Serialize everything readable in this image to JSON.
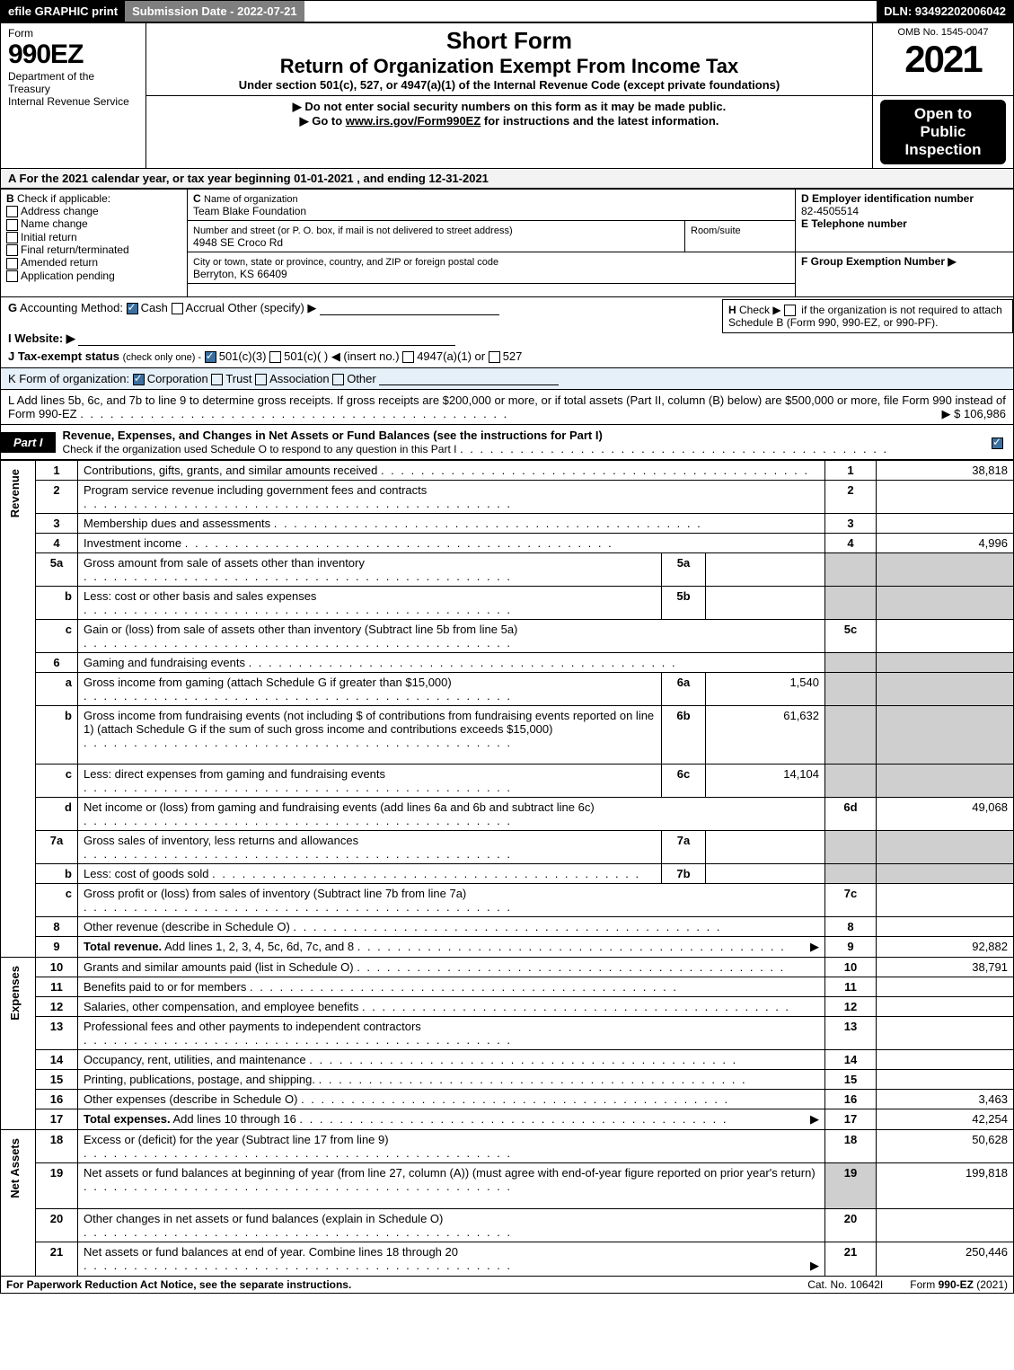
{
  "topbar": {
    "efile": "efile GRAPHIC print",
    "submission": "Submission Date - 2022-07-21",
    "dln": "DLN: 93492202006042"
  },
  "header": {
    "form_word": "Form",
    "form_code": "990EZ",
    "dept_line1": "Department of the Treasury",
    "dept_line2": "Internal Revenue Service",
    "title1": "Short Form",
    "title2": "Return of Organization Exempt From Income Tax",
    "title3": "Under section 501(c), 527, or 4947(a)(1) of the Internal Revenue Code (except private foundations)",
    "warn": "▶ Do not enter social security numbers on this form as it may be made public.",
    "goto_pre": "▶ Go to ",
    "goto_link": "www.irs.gov/Form990EZ",
    "goto_post": " for instructions and the latest information.",
    "omb": "OMB No. 1545-0047",
    "year": "2021",
    "open1": "Open to",
    "open2": "Public",
    "open3": "Inspection"
  },
  "line_a": "A  For the 2021 calendar year, or tax year beginning 01-01-2021 , and ending 12-31-2021",
  "section_b": {
    "heading": "B",
    "sub": "Check if applicable:",
    "items": [
      "Address change",
      "Name change",
      "Initial return",
      "Final return/terminated",
      "Amended return",
      "Application pending"
    ]
  },
  "section_c": {
    "label_c": "C",
    "name_label": "Name of organization",
    "name": "Team Blake Foundation",
    "street_label": "Number and street (or P. O. box, if mail is not delivered to street address)",
    "street": "4948 SE Croco Rd",
    "room_label": "Room/suite",
    "city_label": "City or town, state or province, country, and ZIP or foreign postal code",
    "city": "Berryton, KS  66409"
  },
  "section_d": {
    "label": "D Employer identification number",
    "value": "82-4505514",
    "e_label": "E Telephone number",
    "f_label": "F Group Exemption Number   ▶"
  },
  "gij": {
    "g_label": "G",
    "g_text": "Accounting Method:",
    "g_cash": "Cash",
    "g_accrual": "Accrual",
    "g_other": "Other (specify) ▶",
    "h_label": "H",
    "h_text_pre": "Check ▶ ",
    "h_text": " if the organization is not required to attach Schedule B (Form 990, 990-EZ, or 990-PF).",
    "i_label": "I Website: ▶",
    "j_label": "J Tax-exempt status",
    "j_note": "(check only one) -",
    "j_501c3": "501(c)(3)",
    "j_501c": "501(c)(  ) ◀ (insert no.)",
    "j_4947": "4947(a)(1) or",
    "j_527": "527"
  },
  "k_line": {
    "label": "K",
    "text": "Form of organization:",
    "opts": [
      "Corporation",
      "Trust",
      "Association",
      "Other"
    ]
  },
  "l_line": {
    "label": "L",
    "text": "Add lines 5b, 6c, and 7b to line 9 to determine gross receipts. If gross receipts are $200,000 or more, or if total assets (Part II, column (B) below) are $500,000 or more, file Form 990 instead of Form 990-EZ",
    "arrow_val": "▶ $ 106,986"
  },
  "part1": {
    "tag": "Part I",
    "title": "Revenue, Expenses, and Changes in Net Assets or Fund Balances (see the instructions for Part I)",
    "subtitle": "Check if the organization used Schedule O to respond to any question in this Part I"
  },
  "side_labels": {
    "revenue": "Revenue",
    "expenses": "Expenses",
    "netassets": "Net Assets"
  },
  "rows": [
    {
      "n": "1",
      "desc": "Contributions, gifts, grants, and similar amounts received",
      "ref": "1",
      "amt": "38,818"
    },
    {
      "n": "2",
      "desc": "Program service revenue including government fees and contracts",
      "ref": "2",
      "amt": ""
    },
    {
      "n": "3",
      "desc": "Membership dues and assessments",
      "ref": "3",
      "amt": ""
    },
    {
      "n": "4",
      "desc": "Investment income",
      "ref": "4",
      "amt": "4,996"
    },
    {
      "n": "5a",
      "desc": "Gross amount from sale of assets other than inventory",
      "sub_lbl": "5a",
      "sub_val": "",
      "ref": "",
      "amt": "",
      "shade": true
    },
    {
      "n": "b",
      "desc": "Less: cost or other basis and sales expenses",
      "sub_lbl": "5b",
      "sub_val": "",
      "ref": "",
      "amt": "",
      "shade": true
    },
    {
      "n": "c",
      "desc": "Gain or (loss) from sale of assets other than inventory (Subtract line 5b from line 5a)",
      "ref": "5c",
      "amt": ""
    },
    {
      "n": "6",
      "desc": "Gaming and fundraising events",
      "ref": "",
      "amt": "",
      "shade": true,
      "nosub": true
    },
    {
      "n": "a",
      "desc": "Gross income from gaming (attach Schedule G if greater than $15,000)",
      "sub_lbl": "6a",
      "sub_val": "1,540",
      "ref": "",
      "amt": "",
      "shade": true
    },
    {
      "n": "b",
      "desc": "Gross income from fundraising events (not including $                    of contributions from fundraising events reported on line 1) (attach Schedule G if the sum of such gross income and contributions exceeds $15,000)",
      "sub_lbl": "6b",
      "sub_val": "61,632",
      "ref": "",
      "amt": "",
      "shade": true,
      "tall": true
    },
    {
      "n": "c",
      "desc": "Less: direct expenses from gaming and fundraising events",
      "sub_lbl": "6c",
      "sub_val": "14,104",
      "ref": "",
      "amt": "",
      "shade": true
    },
    {
      "n": "d",
      "desc": "Net income or (loss) from gaming and fundraising events (add lines 6a and 6b and subtract line 6c)",
      "ref": "6d",
      "amt": "49,068"
    },
    {
      "n": "7a",
      "desc": "Gross sales of inventory, less returns and allowances",
      "sub_lbl": "7a",
      "sub_val": "",
      "ref": "",
      "amt": "",
      "shade": true
    },
    {
      "n": "b",
      "desc": "Less: cost of goods sold",
      "sub_lbl": "7b",
      "sub_val": "",
      "ref": "",
      "amt": "",
      "shade": true
    },
    {
      "n": "c",
      "desc": "Gross profit or (loss) from sales of inventory (Subtract line 7b from line 7a)",
      "ref": "7c",
      "amt": ""
    },
    {
      "n": "8",
      "desc": "Other revenue (describe in Schedule O)",
      "ref": "8",
      "amt": ""
    },
    {
      "n": "9",
      "desc": "Total revenue. Add lines 1, 2, 3, 4, 5c, 6d, 7c, and 8",
      "ref": "9",
      "amt": "92,882",
      "bold": true,
      "arrow": true
    }
  ],
  "exp_rows": [
    {
      "n": "10",
      "desc": "Grants and similar amounts paid (list in Schedule O)",
      "ref": "10",
      "amt": "38,791"
    },
    {
      "n": "11",
      "desc": "Benefits paid to or for members",
      "ref": "11",
      "amt": ""
    },
    {
      "n": "12",
      "desc": "Salaries, other compensation, and employee benefits",
      "ref": "12",
      "amt": ""
    },
    {
      "n": "13",
      "desc": "Professional fees and other payments to independent contractors",
      "ref": "13",
      "amt": ""
    },
    {
      "n": "14",
      "desc": "Occupancy, rent, utilities, and maintenance",
      "ref": "14",
      "amt": ""
    },
    {
      "n": "15",
      "desc": "Printing, publications, postage, and shipping.",
      "ref": "15",
      "amt": ""
    },
    {
      "n": "16",
      "desc": "Other expenses (describe in Schedule O)",
      "ref": "16",
      "amt": "3,463"
    },
    {
      "n": "17",
      "desc": "Total expenses. Add lines 10 through 16",
      "ref": "17",
      "amt": "42,254",
      "bold": true,
      "arrow": true
    }
  ],
  "na_rows": [
    {
      "n": "18",
      "desc": "Excess or (deficit) for the year (Subtract line 17 from line 9)",
      "ref": "18",
      "amt": "50,628"
    },
    {
      "n": "19",
      "desc": "Net assets or fund balances at beginning of year (from line 27, column (A)) (must agree with end-of-year figure reported on prior year's return)",
      "ref": "19",
      "amt": "199,818",
      "tall": true,
      "shade_ref": true
    },
    {
      "n": "20",
      "desc": "Other changes in net assets or fund balances (explain in Schedule O)",
      "ref": "20",
      "amt": ""
    },
    {
      "n": "21",
      "desc": "Net assets or fund balances at end of year. Combine lines 18 through 20",
      "ref": "21",
      "amt": "250,446",
      "arrow": true
    }
  ],
  "footer": {
    "left": "For Paperwork Reduction Act Notice, see the separate instructions.",
    "mid": "Cat. No. 10642I",
    "right_pre": "Form ",
    "right_bold": "990-EZ",
    "right_post": " (2021)"
  }
}
